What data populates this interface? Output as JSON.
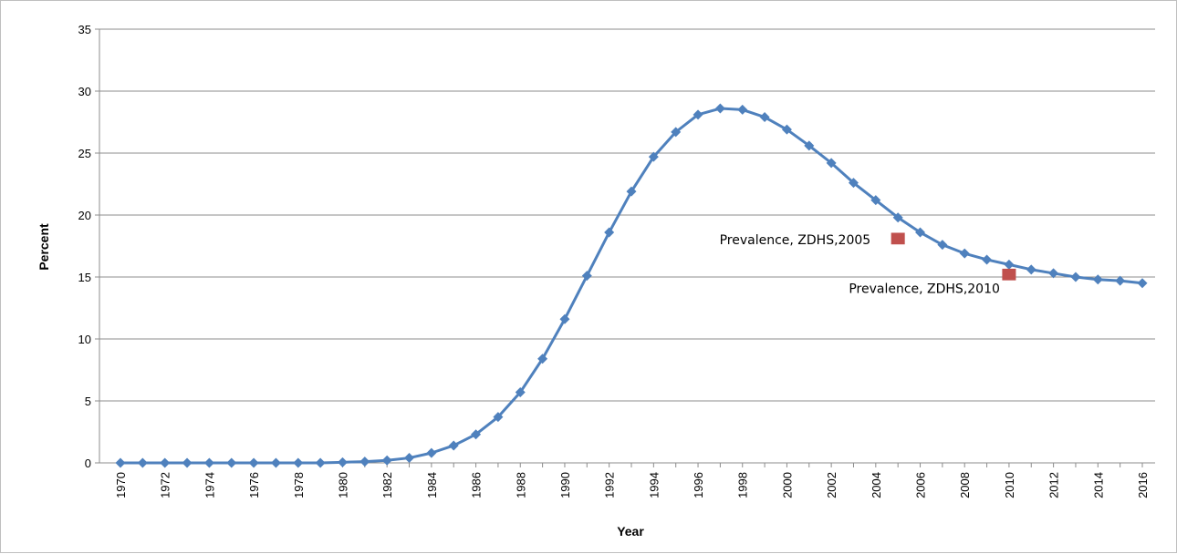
{
  "chart_data": {
    "type": "line",
    "title": "",
    "xlabel": "Year",
    "ylabel": "Percent",
    "xlim": [
      1970,
      2016
    ],
    "ylim": [
      0,
      35
    ],
    "y_ticks": [
      0,
      5,
      10,
      15,
      20,
      25,
      30,
      35
    ],
    "x_tick_labels": [
      1970,
      1972,
      1974,
      1976,
      1978,
      1980,
      1982,
      1984,
      1986,
      1988,
      1990,
      1992,
      1994,
      1996,
      1998,
      2000,
      2002,
      2004,
      2006,
      2008,
      2010,
      2012,
      2014,
      2016
    ],
    "grid": "horizontal",
    "series": [
      {
        "color": "#4f81bd",
        "marker": "diamond",
        "x": [
          1970,
          1971,
          1972,
          1973,
          1974,
          1975,
          1976,
          1977,
          1978,
          1979,
          1980,
          1981,
          1982,
          1983,
          1984,
          1985,
          1986,
          1987,
          1988,
          1989,
          1990,
          1991,
          1992,
          1993,
          1994,
          1995,
          1996,
          1997,
          1998,
          1999,
          2000,
          2001,
          2002,
          2003,
          2004,
          2005,
          2006,
          2007,
          2008,
          2009,
          2010,
          2011,
          2012,
          2013,
          2014,
          2015,
          2016
        ],
        "values": [
          0,
          0,
          0,
          0,
          0,
          0,
          0,
          0,
          0,
          0,
          0.05,
          0.1,
          0.2,
          0.4,
          0.8,
          1.4,
          2.3,
          3.7,
          5.7,
          8.4,
          11.6,
          15.1,
          18.6,
          21.9,
          24.7,
          26.7,
          28.1,
          28.6,
          28.5,
          27.9,
          26.9,
          25.6,
          24.2,
          22.6,
          21.2,
          19.8,
          18.6,
          17.6,
          16.9,
          16.4,
          16.0,
          15.6,
          15.3,
          15.0,
          14.8,
          14.7,
          14.5
        ]
      },
      {
        "color": "#c0504d",
        "marker": "square",
        "x": [
          2005,
          2010
        ],
        "values": [
          18.1,
          15.2
        ]
      }
    ],
    "annotations": [
      {
        "text": "Prevalence, ZDHS,2005",
        "x": 2005,
        "y": 18.1
      },
      {
        "text": "Prevalence, ZDHS,2010",
        "x": 2010,
        "y": 15.2
      }
    ]
  }
}
